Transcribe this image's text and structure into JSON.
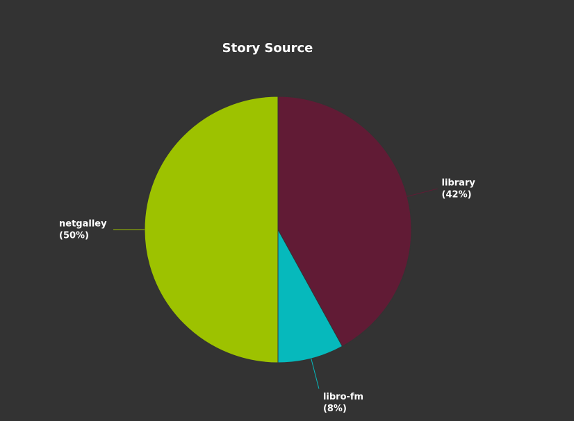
{
  "chart_data": {
    "type": "pie",
    "title": "Story Source",
    "categories": [
      "library",
      "libro-fm",
      "netgalley"
    ],
    "values": [
      42,
      8,
      50
    ],
    "value_labels": [
      "(42%)",
      "(8%)",
      "(50%)"
    ],
    "colors": [
      "#611b35",
      "#06b9bc",
      "#9dc200"
    ]
  }
}
